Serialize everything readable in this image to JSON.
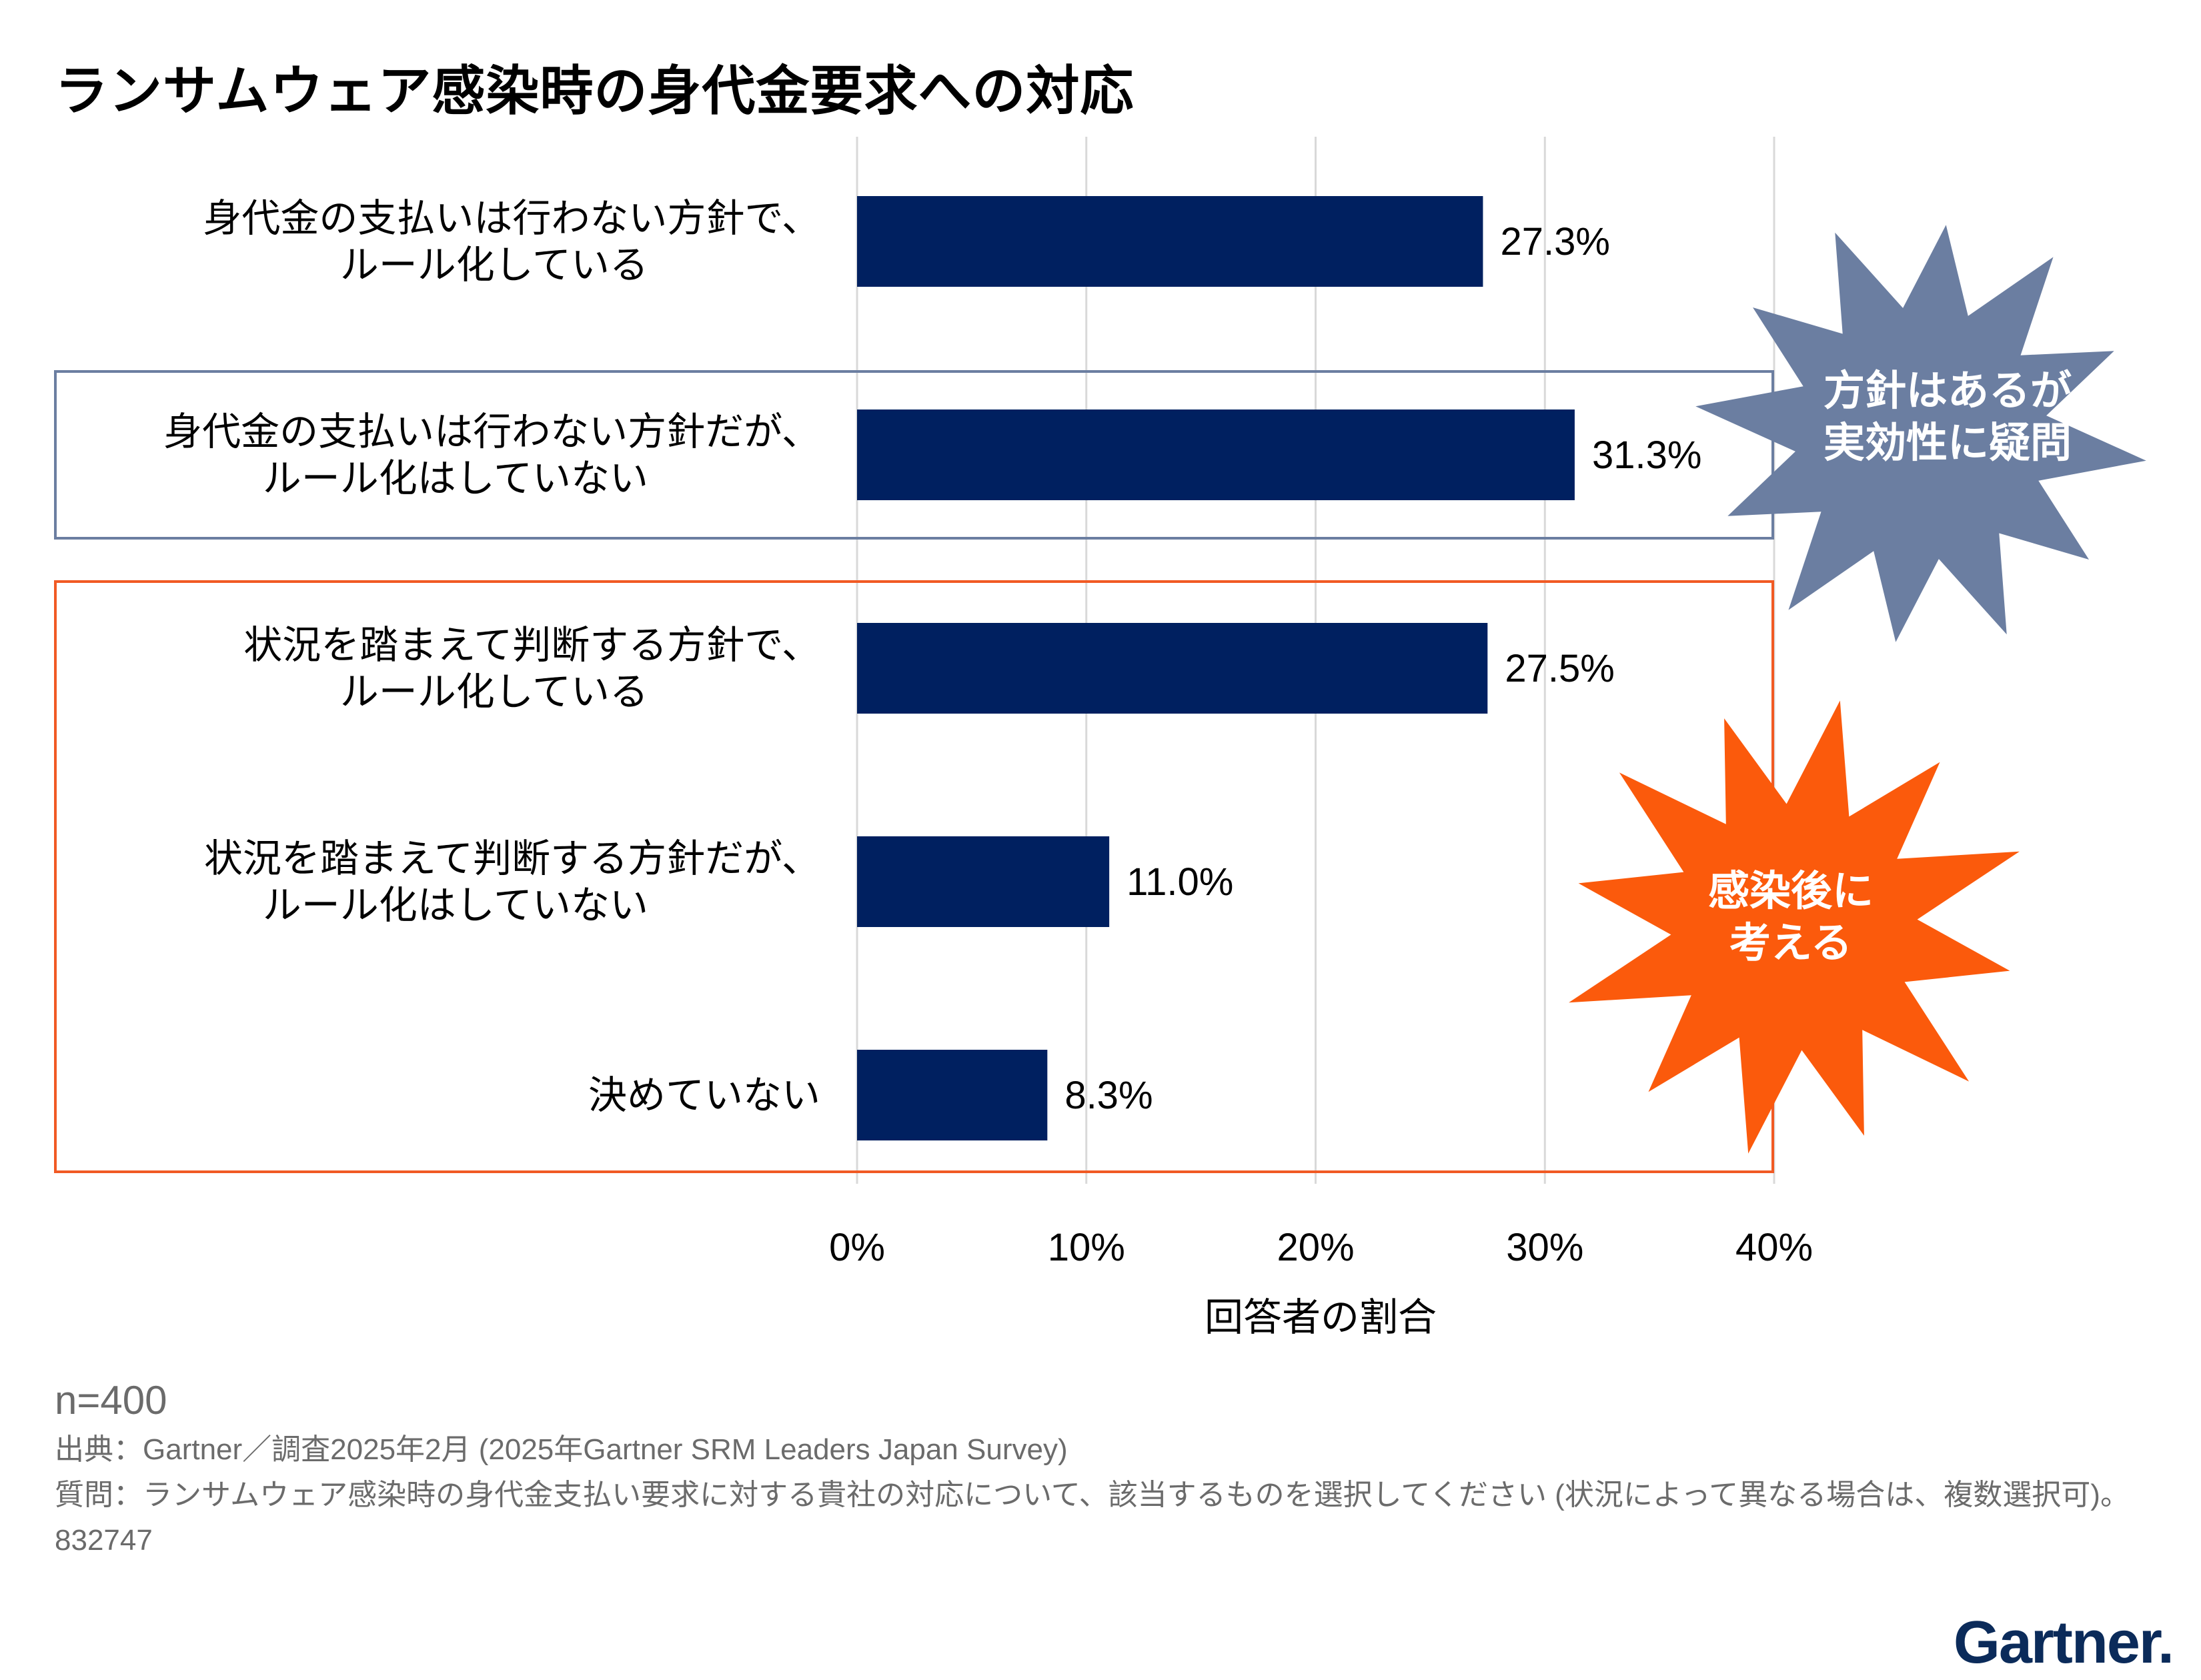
{
  "title": "ランサムウェア感染時の身代金要求への対応",
  "chart_data": {
    "type": "bar",
    "orientation": "horizontal",
    "title": "ランサムウェア感染時の身代金要求への対応",
    "categories": [
      [
        "身代金の支払いは行わない方針で、",
        "ルール化している"
      ],
      [
        "身代金の支払いは行わない方針だが、",
        "ルール化はしていない"
      ],
      [
        "状況を踏まえて判断する方針で、",
        "ルール化している"
      ],
      [
        "状況を踏まえて判断する方針だが、",
        "ルール化はしていない"
      ],
      [
        "決めていない"
      ]
    ],
    "values": [
      27.3,
      31.3,
      27.5,
      11.0,
      8.3
    ],
    "value_labels": [
      "27.3%",
      "31.3%",
      "27.5%",
      "11.0%",
      "8.3%"
    ],
    "xlabel": "回答者の割合",
    "xlim": [
      0,
      40
    ],
    "xticks": [
      0,
      10,
      20,
      30,
      40
    ],
    "xtick_labels": [
      "0%",
      "10%",
      "20%",
      "30%",
      "40%"
    ],
    "grid": "vertical",
    "bar_color": "#002060",
    "groups": [
      {
        "rows": [
          1
        ],
        "frame_color": "#6b7ea1"
      },
      {
        "rows": [
          2,
          3,
          4
        ],
        "frame_color": "#f15a24"
      }
    ]
  },
  "callouts": {
    "policy": {
      "lines": [
        "方針はあるが",
        "実効性に疑問"
      ],
      "color": "#6b7ea1"
    },
    "after": {
      "lines": [
        "感染後に",
        "考える"
      ],
      "color": "#fb5a0c"
    }
  },
  "footer": {
    "n": "n=400",
    "source": "出典：Gartner／調査2025年2月 (2025年Gartner SRM Leaders Japan Survey)",
    "question": "質問：ランサムウェア感染時の身代金支払い要求に対する貴社の対応について、該当するものを選択してください (状況によって異なる場合は、複数選択可)。",
    "id": "832747"
  },
  "logo": "Gartner."
}
